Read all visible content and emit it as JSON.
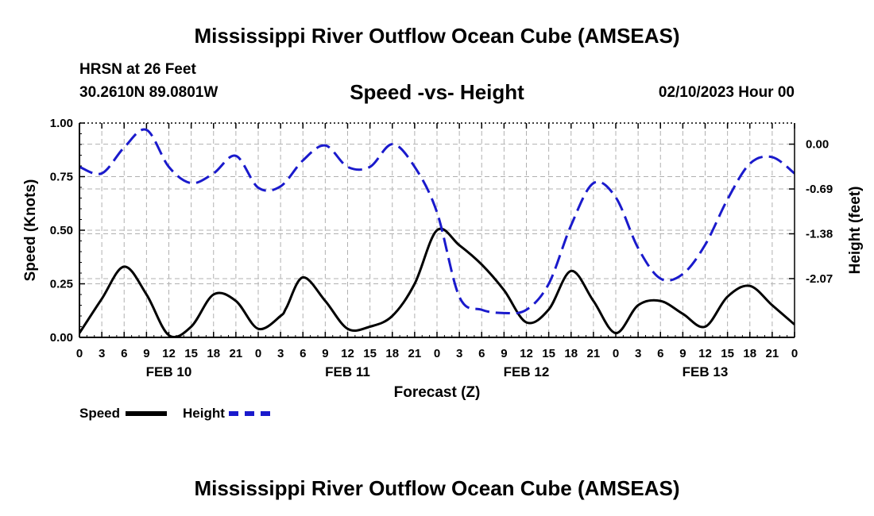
{
  "header": {
    "title": "Mississippi River Outflow Ocean Cube (AMSEAS)",
    "station": "HRSN at 26 Feet",
    "coords": "30.2610N  89.0801W",
    "subtitle": "Speed -vs- Height",
    "datetime": "02/10/2023 Hour 00"
  },
  "footer": {
    "title": "Mississippi River Outflow Ocean Cube (AMSEAS)"
  },
  "legend": {
    "speed_label": "Speed",
    "height_label": "Height"
  },
  "colors": {
    "speed": "#000000",
    "height": "#1a1acc",
    "grid": "#b0b0b0"
  },
  "chart_data": {
    "type": "line",
    "title": "Speed -vs- Height",
    "xlabel": "Forecast (Z)",
    "ylabel_left": "Speed (Knots)",
    "ylabel_right": "Height (feet)",
    "x_unit": "hours since 02/10/2023 00Z",
    "xlim": [
      0,
      96
    ],
    "ylim_left": [
      0,
      1
    ],
    "ylim_right": [
      -2.975,
      0.325
    ],
    "x_ticks": [
      0,
      3,
      6,
      9,
      12,
      15,
      18,
      21,
      24,
      27,
      30,
      33,
      36,
      39,
      42,
      45,
      48,
      51,
      54,
      57,
      60,
      63,
      66,
      69,
      72,
      75,
      78,
      81,
      84,
      87,
      90,
      93,
      96
    ],
    "x_tick_labels": [
      "0",
      "3",
      "6",
      "9",
      "12",
      "15",
      "18",
      "21",
      "0",
      "3",
      "6",
      "9",
      "12",
      "15",
      "18",
      "21",
      "0",
      "3",
      "6",
      "9",
      "12",
      "15",
      "18",
      "21",
      "0",
      "3",
      "6",
      "9",
      "12",
      "15",
      "18",
      "21",
      "0"
    ],
    "day_labels": [
      {
        "x": 12,
        "label": "FEB 10"
      },
      {
        "x": 36,
        "label": "FEB 11"
      },
      {
        "x": 60,
        "label": "FEB 12"
      },
      {
        "x": 84,
        "label": "FEB 13"
      }
    ],
    "left_ticks": [
      0,
      0.25,
      0.5,
      0.75,
      1.0
    ],
    "left_tick_labels": [
      "0.00",
      "0.25",
      "0.50",
      "0.75",
      "1.00"
    ],
    "right_ticks": [
      0.0,
      -0.69,
      -1.38,
      -2.07
    ],
    "right_tick_labels": [
      "0.00",
      "-0.69",
      "-1.38",
      "-2.07"
    ],
    "grid": true,
    "series": [
      {
        "name": "Speed",
        "axis": "left",
        "style": "solid",
        "points": [
          [
            0,
            0.02
          ],
          [
            3,
            0.18
          ],
          [
            6,
            0.33
          ],
          [
            9,
            0.2
          ],
          [
            12,
            0.01
          ],
          [
            15,
            0.05
          ],
          [
            18,
            0.2
          ],
          [
            21,
            0.17
          ],
          [
            24,
            0.04
          ],
          [
            27,
            0.1
          ],
          [
            27.8,
            0.14
          ],
          [
            30,
            0.28
          ],
          [
            33,
            0.17
          ],
          [
            36,
            0.04
          ],
          [
            39,
            0.05
          ],
          [
            42,
            0.1
          ],
          [
            45,
            0.25
          ],
          [
            48,
            0.5
          ],
          [
            51,
            0.43
          ],
          [
            54,
            0.34
          ],
          [
            57,
            0.22
          ],
          [
            60,
            0.07
          ],
          [
            63,
            0.13
          ],
          [
            66,
            0.31
          ],
          [
            69,
            0.17
          ],
          [
            72,
            0.02
          ],
          [
            75,
            0.15
          ],
          [
            78,
            0.17
          ],
          [
            81,
            0.11
          ],
          [
            84,
            0.05
          ],
          [
            87,
            0.19
          ],
          [
            90,
            0.24
          ],
          [
            93,
            0.15
          ],
          [
            96,
            0.06
          ]
        ]
      },
      {
        "name": "Height",
        "axis": "right",
        "style": "dashed",
        "points": [
          [
            0,
            -0.35
          ],
          [
            3,
            -0.45
          ],
          [
            6,
            -0.05
          ],
          [
            9,
            0.22
          ],
          [
            12,
            -0.35
          ],
          [
            15,
            -0.6
          ],
          [
            18,
            -0.45
          ],
          [
            21,
            -0.18
          ],
          [
            24,
            -0.67
          ],
          [
            27,
            -0.65
          ],
          [
            30,
            -0.25
          ],
          [
            33,
            -0.02
          ],
          [
            36,
            -0.35
          ],
          [
            39,
            -0.35
          ],
          [
            42,
            0.0
          ],
          [
            45,
            -0.35
          ],
          [
            48,
            -1.05
          ],
          [
            51,
            -2.35
          ],
          [
            54,
            -2.55
          ],
          [
            57,
            -2.6
          ],
          [
            60,
            -2.55
          ],
          [
            63,
            -2.15
          ],
          [
            66,
            -1.25
          ],
          [
            69,
            -0.6
          ],
          [
            72,
            -0.82
          ],
          [
            75,
            -1.6
          ],
          [
            78,
            -2.07
          ],
          [
            81,
            -2.0
          ],
          [
            84,
            -1.55
          ],
          [
            87,
            -0.85
          ],
          [
            90,
            -0.3
          ],
          [
            93,
            -0.2
          ],
          [
            96,
            -0.45
          ]
        ]
      }
    ]
  }
}
